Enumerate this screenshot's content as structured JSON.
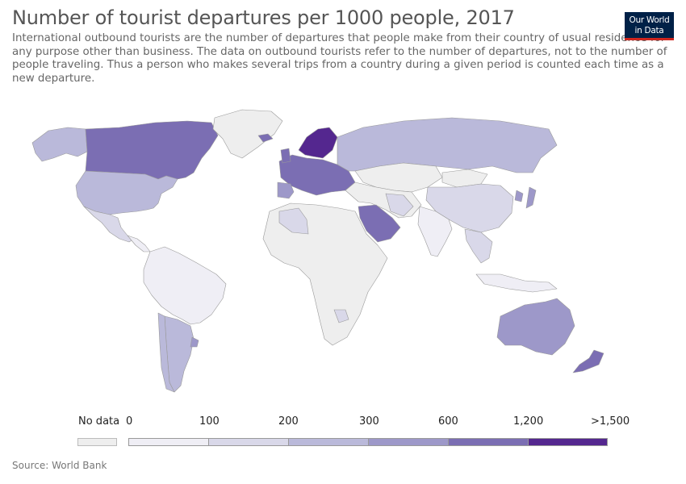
{
  "title": "Number of tourist departures per 1000 people, 2017",
  "subtitle": "International outbound tourists are the number of departures that people make from their country of usual residence for any purpose other than business. The data on outbound tourists refer to the number of departures, not to the number of people traveling. Thus a person who makes several trips from a country during a given period is counted each time as a new departure.",
  "logo": {
    "line1": "Our World",
    "line2": "in Data"
  },
  "source": "Source: World Bank",
  "legend": {
    "no_data_label": "No data",
    "no_data_color": "#eeeeee",
    "tick_labels": [
      "0",
      "100",
      "200",
      "300",
      "600",
      "1,200",
      ">1,500"
    ],
    "bins": [
      {
        "range": "0-100",
        "color": "#efeef5"
      },
      {
        "range": "100-200",
        "color": "#d9d8e9"
      },
      {
        "range": "200-300",
        "color": "#bab9da"
      },
      {
        "range": "300-600",
        "color": "#9d98c9"
      },
      {
        "range": "600-1,200",
        "color": "#7b6eb3"
      },
      {
        "range": "1,200-1,500",
        "color": "#54278f"
      }
    ]
  },
  "colors": {
    "no_data": "#eeeeee",
    "border": "#9a9a9a"
  },
  "map_regions": [
    {
      "name": "Canada",
      "bin": "600-1,200"
    },
    {
      "name": "Alaska (United States)",
      "bin": "200-300"
    },
    {
      "name": "United States",
      "bin": "200-300"
    },
    {
      "name": "Greenland",
      "bin": "no data"
    },
    {
      "name": "Mexico",
      "bin": "100-200"
    },
    {
      "name": "Central America",
      "bin": "0-100"
    },
    {
      "name": "South America (Brazil, Peru, Colombia, Venezuela, Bolivia)",
      "bin": "0-100"
    },
    {
      "name": "Argentina",
      "bin": "200-300"
    },
    {
      "name": "Chile",
      "bin": "200-300"
    },
    {
      "name": "Uruguay",
      "bin": "300-600"
    },
    {
      "name": "Iceland",
      "bin": "600-1,200"
    },
    {
      "name": "Norway, Sweden, Finland",
      "bin": "1,200-1,500"
    },
    {
      "name": "Central Europe",
      "bin": "600-1,200"
    },
    {
      "name": "Spain, Portugal",
      "bin": "300-600"
    },
    {
      "name": "Russia",
      "bin": "200-300"
    },
    {
      "name": "Kazakhstan, Central Asia",
      "bin": "no data"
    },
    {
      "name": "Mongolia",
      "bin": "no data"
    },
    {
      "name": "China",
      "bin": "100-200"
    },
    {
      "name": "India",
      "bin": "0-100"
    },
    {
      "name": "Saudi Arabia",
      "bin": "600-1,200"
    },
    {
      "name": "Iran",
      "bin": "100-200"
    },
    {
      "name": "Algeria",
      "bin": "100-200"
    },
    {
      "name": "Africa",
      "bin": "no data"
    },
    {
      "name": "Botswana",
      "bin": "100-200"
    },
    {
      "name": "Southeast Asia",
      "bin": "100-200"
    },
    {
      "name": "Korea, Japan",
      "bin": "300-600"
    },
    {
      "name": "Indonesia",
      "bin": "0-100"
    },
    {
      "name": "Australia",
      "bin": "300-600"
    },
    {
      "name": "New Zealand",
      "bin": "600-1,200"
    }
  ]
}
